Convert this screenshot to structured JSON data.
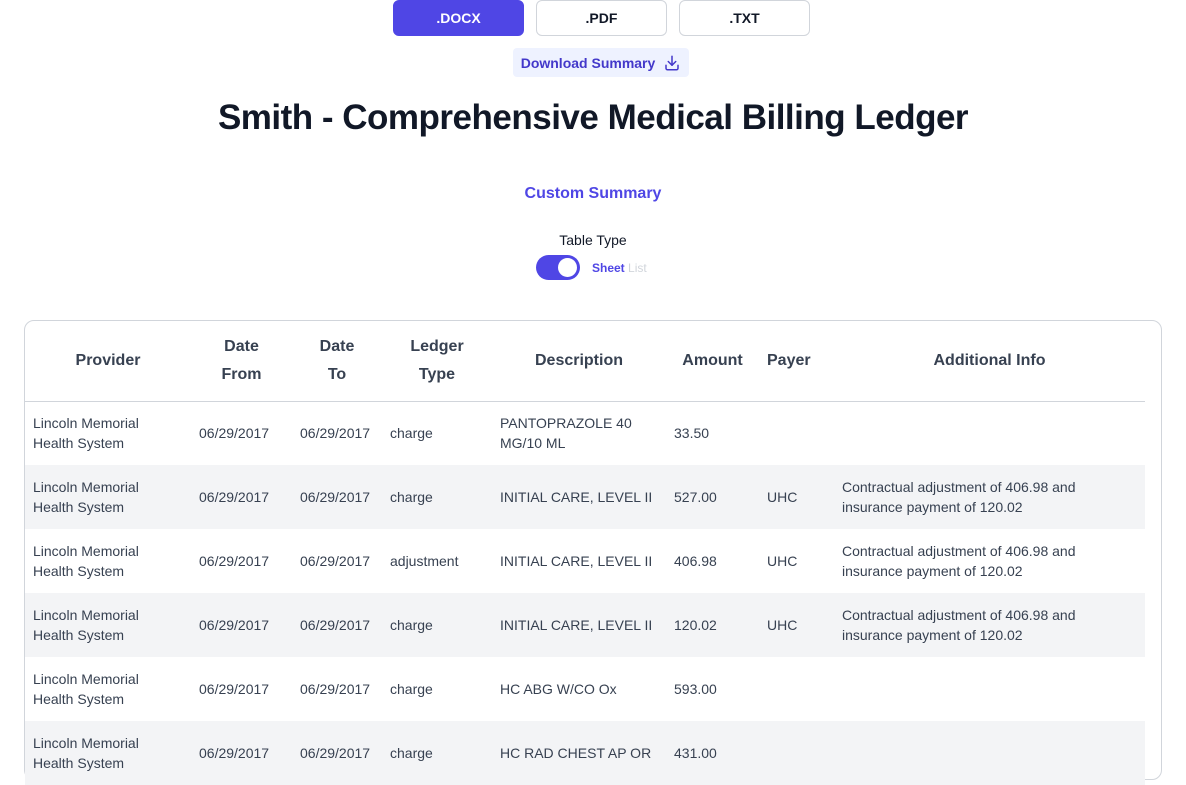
{
  "formats": [
    {
      "label": ".DOCX",
      "active": true
    },
    {
      "label": ".PDF",
      "active": false
    },
    {
      "label": ".TXT",
      "active": false
    }
  ],
  "download": {
    "label": "Download Summary",
    "icon": "download-icon"
  },
  "page_title": "Smith - Comprehensive Medical Billing Ledger",
  "custom_summary": "Custom Summary",
  "table_type": {
    "label": "Table Type",
    "on_label": "Sheet",
    "off_label": "List",
    "selected": "Sheet"
  },
  "colors": {
    "accent": "#4f46e5",
    "accent_light": "#eef2ff",
    "stripe": "#f3f4f6"
  },
  "table": {
    "headers": [
      {
        "line1": "Provider",
        "line2": ""
      },
      {
        "line1": "Date",
        "line2": "From"
      },
      {
        "line1": "Date",
        "line2": "To"
      },
      {
        "line1": "Ledger",
        "line2": "Type"
      },
      {
        "line1": "Description",
        "line2": ""
      },
      {
        "line1": "Amount",
        "line2": ""
      },
      {
        "line1": "Payer",
        "line2": ""
      },
      {
        "line1": "Additional Info",
        "line2": ""
      }
    ],
    "rows": [
      {
        "provider": "Lincoln Memorial Health System",
        "date_from": "06/29/2017",
        "date_to": "06/29/2017",
        "ledger_type": "charge",
        "description": "PANTOPRAZOLE 40 MG/10 ML",
        "amount": "33.50",
        "payer": "",
        "info": ""
      },
      {
        "provider": "Lincoln Memorial Health System",
        "date_from": "06/29/2017",
        "date_to": "06/29/2017",
        "ledger_type": "charge",
        "description": "INITIAL CARE, LEVEL II",
        "amount": "527.00",
        "payer": "UHC",
        "info": "Contractual adjustment of 406.98 and insurance payment of 120.02"
      },
      {
        "provider": "Lincoln Memorial Health System",
        "date_from": "06/29/2017",
        "date_to": "06/29/2017",
        "ledger_type": "adjustment",
        "description": "INITIAL CARE, LEVEL II",
        "amount": "406.98",
        "payer": "UHC",
        "info": "Contractual adjustment of 406.98 and insurance payment of 120.02"
      },
      {
        "provider": "Lincoln Memorial Health System",
        "date_from": "06/29/2017",
        "date_to": "06/29/2017",
        "ledger_type": "charge",
        "description": "INITIAL CARE, LEVEL II",
        "amount": "120.02",
        "payer": "UHC",
        "info": "Contractual adjustment of 406.98 and insurance payment of 120.02"
      },
      {
        "provider": "Lincoln Memorial Health System",
        "date_from": "06/29/2017",
        "date_to": "06/29/2017",
        "ledger_type": "charge",
        "description": "HC ABG W/CO Ox",
        "amount": "593.00",
        "payer": "",
        "info": ""
      },
      {
        "provider": "Lincoln Memorial Health System",
        "date_from": "06/29/2017",
        "date_to": "06/29/2017",
        "ledger_type": "charge",
        "description": "HC RAD CHEST AP OR",
        "amount": "431.00",
        "payer": "",
        "info": ""
      }
    ]
  }
}
